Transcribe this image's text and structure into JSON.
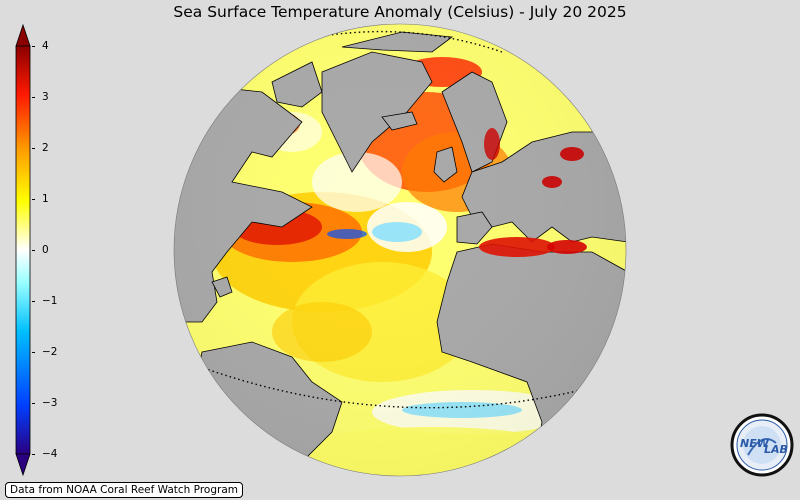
{
  "title": "Sea Surface Temperature Anomaly (Celsius) - July 20 2025",
  "colorbar": {
    "ticks": [
      "4",
      "3",
      "2",
      "1",
      "0",
      "−1",
      "−2",
      "−3",
      "−4"
    ],
    "min": -4,
    "max": 4,
    "colors": [
      "#2a0080",
      "#0044ff",
      "#00bfff",
      "#ffffff",
      "#ffff00",
      "#ff9900",
      "#ff0000",
      "#8b0000"
    ]
  },
  "credit": "Data from NOAA Coral Reef Watch Program",
  "logo": {
    "text_left": "NEW",
    "text_right": "LAB"
  },
  "map": {
    "projection": "orthographic",
    "center_region": "Atlantic Ocean",
    "land_color": "#a9a9a9",
    "ocean_base_color": "#ffff80"
  }
}
